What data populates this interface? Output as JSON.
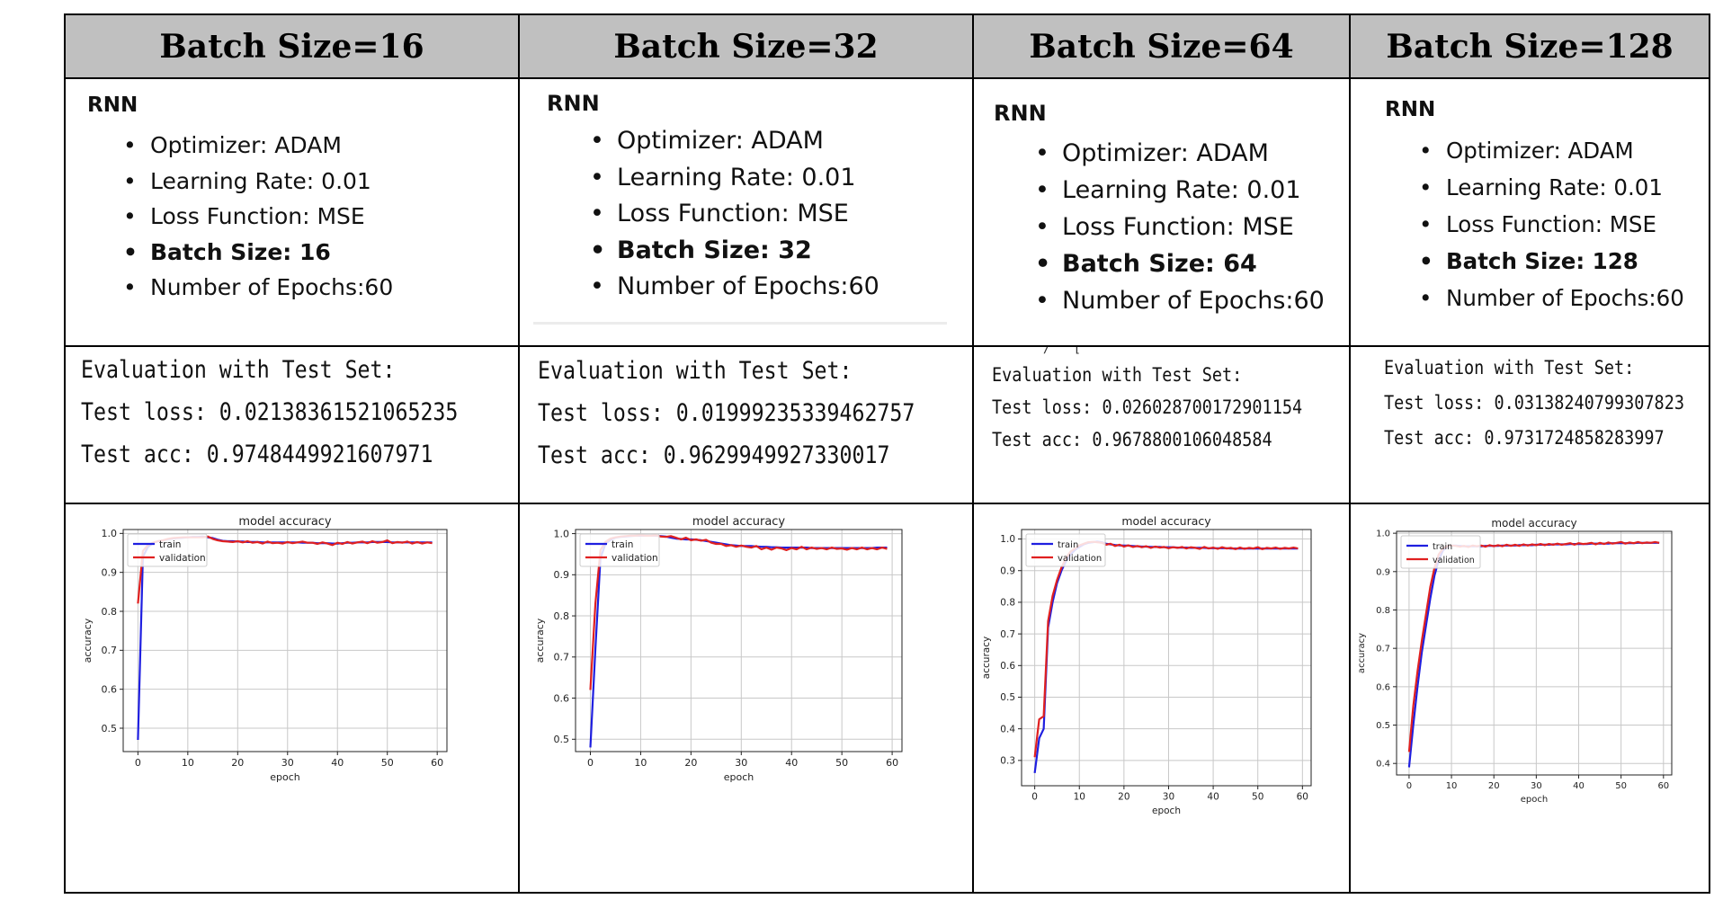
{
  "headers": [
    "Batch Size=16",
    "Batch Size=32",
    "Batch Size=64",
    "Batch Size=128"
  ],
  "columns": [
    {
      "model": "RNN",
      "params": [
        "Optimizer: ADAM",
        "Learning Rate: 0.01",
        "Loss Function: MSE",
        "Batch Size: 16",
        "Number of Epochs:60"
      ],
      "eval": {
        "title": "Evaluation with Test Set:",
        "loss": "Test loss: 0.02138361521065235",
        "acc": "Test acc: 0.9748449921607971"
      }
    },
    {
      "model": "RNN",
      "params": [
        "Optimizer: ADAM",
        "Learning Rate: 0.01",
        "Loss Function: MSE",
        "Batch Size: 32",
        "Number of Epochs:60"
      ],
      "eval": {
        "title": "Evaluation with Test Set:",
        "loss": "Test loss: 0.01999235339462757",
        "acc": "Test acc: 0.9629949927330017"
      }
    },
    {
      "model": "RNN",
      "params": [
        "Optimizer: ADAM",
        "Learning Rate: 0.01",
        "Loss Function: MSE",
        "Batch Size: 64",
        "Number of Epochs:60"
      ],
      "eval": {
        "title": "Evaluation with Test Set:",
        "loss": "Test loss: 0.026028700172901154",
        "acc": "Test acc: 0.9678800106048584"
      }
    },
    {
      "model": "RNN",
      "params": [
        "Optimizer: ADAM",
        "Learning Rate: 0.01",
        "Loss Function: MSE",
        "Batch Size: 128",
        "Number of Epochs:60"
      ],
      "eval": {
        "title": "Evaluation with Test Set:",
        "loss": "Test loss: 0.03138240799307823",
        "acc": "Test acc: 0.9731724858283997"
      }
    }
  ],
  "colors": {
    "train": "#1f1fe0",
    "validation": "#e02020",
    "header_bg": "#c0c0c0"
  },
  "chart_data": [
    {
      "type": "line",
      "title": "model accuracy",
      "xlabel": "epoch",
      "ylabel": "accuracy",
      "xlim": [
        -2.95,
        61.95
      ],
      "ylim": [
        0.44,
        1.01
      ],
      "xticks": [
        0,
        10,
        20,
        30,
        40,
        50,
        60
      ],
      "yticks": [
        0.5,
        0.6,
        0.7,
        0.8,
        0.9,
        1.0
      ],
      "legend": "upper left",
      "grid": true,
      "x": [
        0,
        1,
        2,
        3,
        4,
        5,
        6,
        7,
        8,
        9,
        10,
        11,
        12,
        13,
        14,
        15,
        16,
        17,
        18,
        19,
        20,
        21,
        22,
        23,
        24,
        25,
        26,
        27,
        28,
        29,
        30,
        31,
        32,
        33,
        34,
        35,
        36,
        37,
        38,
        39,
        40,
        41,
        42,
        43,
        44,
        45,
        46,
        47,
        48,
        49,
        50,
        51,
        52,
        53,
        54,
        55,
        56,
        57,
        58,
        59
      ],
      "series": [
        {
          "name": "train",
          "values": [
            0.47,
            0.94,
            0.965,
            0.975,
            0.98,
            0.982,
            0.985,
            0.987,
            0.988,
            0.989,
            0.99,
            0.991,
            0.991,
            0.992,
            0.99,
            0.988,
            0.984,
            0.981,
            0.98,
            0.98,
            0.979,
            0.979,
            0.978,
            0.978,
            0.978,
            0.977,
            0.977,
            0.977,
            0.977,
            0.977,
            0.977,
            0.977,
            0.977,
            0.976,
            0.976,
            0.976,
            0.975,
            0.975,
            0.975,
            0.974,
            0.974,
            0.975,
            0.976,
            0.976,
            0.977,
            0.977,
            0.977,
            0.978,
            0.978,
            0.978,
            0.978,
            0.977,
            0.977,
            0.977,
            0.977,
            0.977,
            0.977,
            0.977,
            0.977,
            0.977
          ]
        },
        {
          "name": "validation",
          "values": [
            0.82,
            0.955,
            0.97,
            0.976,
            0.98,
            0.982,
            0.986,
            0.988,
            0.989,
            0.99,
            0.99,
            0.99,
            0.99,
            0.99,
            0.992,
            0.986,
            0.982,
            0.98,
            0.979,
            0.978,
            0.98,
            0.977,
            0.98,
            0.976,
            0.978,
            0.974,
            0.979,
            0.975,
            0.976,
            0.974,
            0.978,
            0.975,
            0.977,
            0.979,
            0.976,
            0.976,
            0.973,
            0.977,
            0.974,
            0.97,
            0.976,
            0.973,
            0.978,
            0.974,
            0.977,
            0.979,
            0.975,
            0.98,
            0.976,
            0.978,
            0.982,
            0.975,
            0.978,
            0.976,
            0.979,
            0.974,
            0.978,
            0.974,
            0.977,
            0.975
          ]
        }
      ]
    },
    {
      "type": "line",
      "title": "model accuracy",
      "xlabel": "epoch",
      "ylabel": "accuracy",
      "xlim": [
        -2.95,
        61.95
      ],
      "ylim": [
        0.47,
        1.01
      ],
      "xticks": [
        0,
        10,
        20,
        30,
        40,
        50,
        60
      ],
      "yticks": [
        0.5,
        0.6,
        0.7,
        0.8,
        0.9,
        1.0
      ],
      "legend": "upper left",
      "grid": true,
      "x": [
        0,
        1,
        2,
        3,
        4,
        5,
        6,
        7,
        8,
        9,
        10,
        11,
        12,
        13,
        14,
        15,
        16,
        17,
        18,
        19,
        20,
        21,
        22,
        23,
        24,
        25,
        26,
        27,
        28,
        29,
        30,
        31,
        32,
        33,
        34,
        35,
        36,
        37,
        38,
        39,
        40,
        41,
        42,
        43,
        44,
        45,
        46,
        47,
        48,
        49,
        50,
        51,
        52,
        53,
        54,
        55,
        56,
        57,
        58,
        59
      ],
      "series": [
        {
          "name": "train",
          "values": [
            0.48,
            0.72,
            0.94,
            0.975,
            0.985,
            0.99,
            0.992,
            0.993,
            0.994,
            0.995,
            0.995,
            0.995,
            0.995,
            0.995,
            0.994,
            0.993,
            0.99,
            0.988,
            0.987,
            0.986,
            0.986,
            0.985,
            0.984,
            0.982,
            0.98,
            0.978,
            0.976,
            0.974,
            0.972,
            0.971,
            0.97,
            0.97,
            0.97,
            0.969,
            0.968,
            0.968,
            0.967,
            0.967,
            0.966,
            0.966,
            0.966,
            0.966,
            0.966,
            0.966,
            0.965,
            0.965,
            0.965,
            0.965,
            0.965,
            0.965,
            0.965,
            0.965,
            0.965,
            0.965,
            0.965,
            0.965,
            0.965,
            0.966,
            0.966,
            0.966
          ]
        },
        {
          "name": "validation",
          "values": [
            0.62,
            0.83,
            0.96,
            0.98,
            0.988,
            0.991,
            0.993,
            0.994,
            0.995,
            0.995,
            0.996,
            0.995,
            0.995,
            0.996,
            0.993,
            0.992,
            0.994,
            0.99,
            0.986,
            0.99,
            0.984,
            0.986,
            0.983,
            0.985,
            0.978,
            0.975,
            0.975,
            0.97,
            0.972,
            0.968,
            0.971,
            0.968,
            0.966,
            0.97,
            0.962,
            0.966,
            0.961,
            0.966,
            0.964,
            0.96,
            0.965,
            0.962,
            0.968,
            0.962,
            0.966,
            0.963,
            0.965,
            0.962,
            0.966,
            0.963,
            0.964,
            0.961,
            0.965,
            0.962,
            0.966,
            0.962,
            0.965,
            0.962,
            0.966,
            0.963
          ]
        }
      ]
    },
    {
      "type": "line",
      "title": "model accuracy",
      "xlabel": "epoch",
      "ylabel": "accuracy",
      "xlim": [
        -2.95,
        61.95
      ],
      "ylim": [
        0.22,
        1.03
      ],
      "xticks": [
        0,
        10,
        20,
        30,
        40,
        50,
        60
      ],
      "yticks": [
        0.3,
        0.4,
        0.5,
        0.6,
        0.7,
        0.8,
        0.9,
        1.0
      ],
      "legend": "upper left",
      "grid": true,
      "x": [
        0,
        1,
        2,
        3,
        4,
        5,
        6,
        7,
        8,
        9,
        10,
        11,
        12,
        13,
        14,
        15,
        16,
        17,
        18,
        19,
        20,
        21,
        22,
        23,
        24,
        25,
        26,
        27,
        28,
        29,
        30,
        31,
        32,
        33,
        34,
        35,
        36,
        37,
        38,
        39,
        40,
        41,
        42,
        43,
        44,
        45,
        46,
        47,
        48,
        49,
        50,
        51,
        52,
        53,
        54,
        55,
        56,
        57,
        58,
        59
      ],
      "series": [
        {
          "name": "train",
          "values": [
            0.26,
            0.37,
            0.4,
            0.72,
            0.8,
            0.86,
            0.9,
            0.93,
            0.95,
            0.965,
            0.975,
            0.983,
            0.988,
            0.99,
            0.992,
            0.99,
            0.985,
            0.983,
            0.981,
            0.98,
            0.979,
            0.979,
            0.978,
            0.977,
            0.976,
            0.976,
            0.975,
            0.975,
            0.975,
            0.974,
            0.974,
            0.974,
            0.973,
            0.973,
            0.973,
            0.972,
            0.972,
            0.972,
            0.972,
            0.971,
            0.971,
            0.971,
            0.971,
            0.971,
            0.97,
            0.97,
            0.97,
            0.97,
            0.97,
            0.97,
            0.97,
            0.97,
            0.97,
            0.97,
            0.97,
            0.97,
            0.97,
            0.97,
            0.97,
            0.97
          ]
        },
        {
          "name": "validation",
          "values": [
            0.31,
            0.43,
            0.44,
            0.74,
            0.82,
            0.87,
            0.91,
            0.94,
            0.96,
            0.97,
            0.98,
            0.985,
            0.99,
            0.991,
            0.99,
            0.988,
            0.982,
            0.985,
            0.978,
            0.982,
            0.976,
            0.98,
            0.975,
            0.978,
            0.974,
            0.977,
            0.972,
            0.976,
            0.973,
            0.975,
            0.971,
            0.974,
            0.972,
            0.975,
            0.97,
            0.974,
            0.972,
            0.969,
            0.975,
            0.97,
            0.973,
            0.969,
            0.974,
            0.97,
            0.972,
            0.968,
            0.973,
            0.969,
            0.972,
            0.97,
            0.974,
            0.968,
            0.972,
            0.97,
            0.973,
            0.969,
            0.972,
            0.97,
            0.973,
            0.97
          ]
        }
      ]
    },
    {
      "type": "line",
      "title": "model accuracy",
      "xlabel": "epoch",
      "ylabel": "accuracy",
      "xlim": [
        -2.95,
        61.95
      ],
      "ylim": [
        0.37,
        1.005
      ],
      "xticks": [
        0,
        10,
        20,
        30,
        40,
        50,
        60
      ],
      "yticks": [
        0.4,
        0.5,
        0.6,
        0.7,
        0.8,
        0.9,
        1.0
      ],
      "legend": "upper left",
      "grid": true,
      "x": [
        0,
        1,
        2,
        3,
        4,
        5,
        6,
        7,
        8,
        9,
        10,
        11,
        12,
        13,
        14,
        15,
        16,
        17,
        18,
        19,
        20,
        21,
        22,
        23,
        24,
        25,
        26,
        27,
        28,
        29,
        30,
        31,
        32,
        33,
        34,
        35,
        36,
        37,
        38,
        39,
        40,
        41,
        42,
        43,
        44,
        45,
        46,
        47,
        48,
        49,
        50,
        51,
        52,
        53,
        54,
        55,
        56,
        57,
        58,
        59
      ],
      "series": [
        {
          "name": "train",
          "values": [
            0.39,
            0.5,
            0.6,
            0.69,
            0.76,
            0.83,
            0.89,
            0.93,
            0.955,
            0.965,
            0.968,
            0.968,
            0.967,
            0.966,
            0.966,
            0.966,
            0.966,
            0.966,
            0.967,
            0.967,
            0.967,
            0.967,
            0.968,
            0.968,
            0.968,
            0.968,
            0.969,
            0.969,
            0.969,
            0.969,
            0.97,
            0.97,
            0.97,
            0.97,
            0.971,
            0.971,
            0.971,
            0.971,
            0.972,
            0.972,
            0.972,
            0.972,
            0.972,
            0.973,
            0.973,
            0.973,
            0.973,
            0.973,
            0.974,
            0.974,
            0.974,
            0.974,
            0.974,
            0.974,
            0.975,
            0.975,
            0.975,
            0.975,
            0.975,
            0.975
          ]
        },
        {
          "name": "validation",
          "values": [
            0.43,
            0.55,
            0.64,
            0.72,
            0.79,
            0.86,
            0.91,
            0.945,
            0.96,
            0.966,
            0.968,
            0.967,
            0.965,
            0.967,
            0.964,
            0.968,
            0.966,
            0.968,
            0.965,
            0.969,
            0.966,
            0.969,
            0.966,
            0.97,
            0.967,
            0.97,
            0.967,
            0.971,
            0.968,
            0.971,
            0.969,
            0.972,
            0.969,
            0.972,
            0.97,
            0.973,
            0.97,
            0.972,
            0.974,
            0.97,
            0.974,
            0.972,
            0.973,
            0.975,
            0.971,
            0.975,
            0.972,
            0.976,
            0.973,
            0.975,
            0.977,
            0.973,
            0.976,
            0.974,
            0.977,
            0.974,
            0.976,
            0.975,
            0.977,
            0.975
          ]
        }
      ]
    }
  ]
}
